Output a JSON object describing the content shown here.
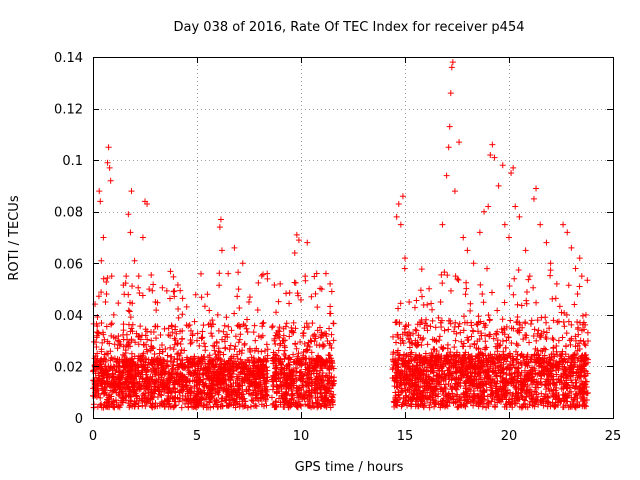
{
  "chart_data": {
    "type": "scatter",
    "title": "Day 038 of 2016, Rate Of TEC Index for receiver p454",
    "xlabel": "GPS time / hours",
    "ylabel": "ROTI / TECUs",
    "xlim": [
      0,
      25
    ],
    "ylim": [
      0,
      0.14
    ],
    "xticks": [
      0,
      5,
      10,
      15,
      20,
      25
    ],
    "xtick_labels": [
      "0",
      "5",
      "10",
      "15",
      "20",
      "25"
    ],
    "yticks": [
      0,
      0.02,
      0.04,
      0.06,
      0.08,
      0.1,
      0.12,
      0.14
    ],
    "ytick_labels": [
      "0",
      "0.02",
      "0.04",
      "0.06",
      "0.08",
      "0.1",
      "0.12",
      "0.14"
    ],
    "grid": true,
    "marker": "plus",
    "marker_color": "#ff0000",
    "series": [
      {
        "name": "ROTI",
        "segments": [
          {
            "x_start": 0.0,
            "x_end": 8.4,
            "base": 0.012
          },
          {
            "x_start": 8.6,
            "x_end": 11.6,
            "base": 0.012
          },
          {
            "x_start": 14.4,
            "x_end": 23.8,
            "base": 0.013
          }
        ],
        "points": [
          [
            0.1,
            0.01
          ],
          [
            0.2,
            0.025
          ],
          [
            0.3,
            0.088
          ],
          [
            0.35,
            0.084
          ],
          [
            0.4,
            0.061
          ],
          [
            0.5,
            0.07
          ],
          [
            0.6,
            0.045
          ],
          [
            0.7,
            0.099
          ],
          [
            0.75,
            0.105
          ],
          [
            0.8,
            0.097
          ],
          [
            0.85,
            0.092
          ],
          [
            0.9,
            0.055
          ],
          [
            1.0,
            0.04
          ],
          [
            1.2,
            0.03
          ],
          [
            1.5,
            0.048
          ],
          [
            1.7,
            0.079
          ],
          [
            1.8,
            0.072
          ],
          [
            1.85,
            0.088
          ],
          [
            2.0,
            0.061
          ],
          [
            2.2,
            0.055
          ],
          [
            2.4,
            0.07
          ],
          [
            2.5,
            0.084
          ],
          [
            2.6,
            0.083
          ],
          [
            2.7,
            0.05
          ],
          [
            2.8,
            0.03
          ],
          [
            3.0,
            0.045
          ],
          [
            3.2,
            0.025
          ],
          [
            3.5,
            0.018
          ],
          [
            4.0,
            0.014
          ],
          [
            4.5,
            0.036
          ],
          [
            5.0,
            0.03
          ],
          [
            5.5,
            0.048
          ],
          [
            6.0,
            0.04
          ],
          [
            6.1,
            0.074
          ],
          [
            6.15,
            0.077
          ],
          [
            6.2,
            0.065
          ],
          [
            6.5,
            0.056
          ],
          [
            6.8,
            0.066
          ],
          [
            7.0,
            0.05
          ],
          [
            7.2,
            0.06
          ],
          [
            7.5,
            0.045
          ],
          [
            7.8,
            0.03
          ],
          [
            8.2,
            0.018
          ],
          [
            8.8,
            0.041
          ],
          [
            9.0,
            0.052
          ],
          [
            9.2,
            0.028
          ],
          [
            9.5,
            0.015
          ],
          [
            9.7,
            0.064
          ],
          [
            9.8,
            0.071
          ],
          [
            9.9,
            0.069
          ],
          [
            10.2,
            0.055
          ],
          [
            10.3,
            0.068
          ],
          [
            10.5,
            0.047
          ],
          [
            10.8,
            0.034
          ],
          [
            11.0,
            0.05
          ],
          [
            11.2,
            0.056
          ],
          [
            11.4,
            0.052
          ],
          [
            14.6,
            0.078
          ],
          [
            14.7,
            0.083
          ],
          [
            14.8,
            0.075
          ],
          [
            14.9,
            0.086
          ],
          [
            15.0,
            0.062
          ],
          [
            15.2,
            0.045
          ],
          [
            15.5,
            0.03
          ],
          [
            15.8,
            0.038
          ],
          [
            16.0,
            0.025
          ],
          [
            16.3,
            0.042
          ],
          [
            16.5,
            0.03
          ],
          [
            16.8,
            0.075
          ],
          [
            17.0,
            0.094
          ],
          [
            17.1,
            0.105
          ],
          [
            17.15,
            0.113
          ],
          [
            17.2,
            0.126
          ],
          [
            17.25,
            0.136
          ],
          [
            17.3,
            0.138
          ],
          [
            17.4,
            0.088
          ],
          [
            17.6,
            0.107
          ],
          [
            17.8,
            0.07
          ],
          [
            18.0,
            0.065
          ],
          [
            18.3,
            0.06
          ],
          [
            18.6,
            0.072
          ],
          [
            18.8,
            0.08
          ],
          [
            19.0,
            0.082
          ],
          [
            19.1,
            0.102
          ],
          [
            19.2,
            0.106
          ],
          [
            19.3,
            0.101
          ],
          [
            19.5,
            0.09
          ],
          [
            19.7,
            0.098
          ],
          [
            19.8,
            0.075
          ],
          [
            20.0,
            0.07
          ],
          [
            20.1,
            0.095
          ],
          [
            20.2,
            0.097
          ],
          [
            20.3,
            0.082
          ],
          [
            20.5,
            0.078
          ],
          [
            20.8,
            0.065
          ],
          [
            21.0,
            0.055
          ],
          [
            21.2,
            0.085
          ],
          [
            21.3,
            0.089
          ],
          [
            21.5,
            0.075
          ],
          [
            21.8,
            0.068
          ],
          [
            22.0,
            0.06
          ],
          [
            22.3,
            0.052
          ],
          [
            22.6,
            0.075
          ],
          [
            22.8,
            0.072
          ],
          [
            23.0,
            0.066
          ],
          [
            23.2,
            0.058
          ],
          [
            23.4,
            0.062
          ],
          [
            23.5,
            0.055
          ],
          [
            23.7,
            0.04
          ]
        ]
      }
    ]
  }
}
